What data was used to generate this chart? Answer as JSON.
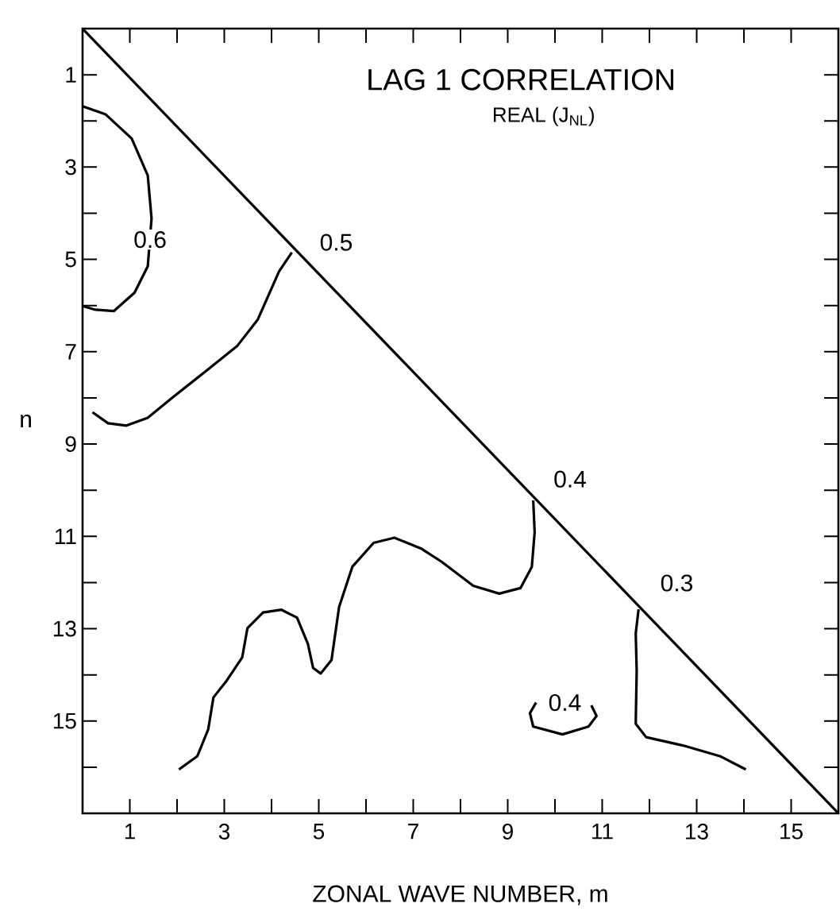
{
  "chart_data": {
    "type": "line",
    "title": "LAG 1 CORRELATION",
    "subtitle": "REAL (J$_{NL}$)",
    "xlabel": "ZONAL WAVE NUMBER, m",
    "ylabel": "n",
    "xlim": [
      0,
      16
    ],
    "ylim": [
      17,
      0
    ],
    "xticks": [
      {
        "value": 1,
        "label": "1"
      },
      {
        "value": 2,
        "label": null
      },
      {
        "value": 3,
        "label": "3"
      },
      {
        "value": 4,
        "label": null
      },
      {
        "value": 5,
        "label": "5"
      },
      {
        "value": 6,
        "label": null
      },
      {
        "value": 7,
        "label": "7"
      },
      {
        "value": 8,
        "label": null
      },
      {
        "value": 9,
        "label": "9"
      },
      {
        "value": 10,
        "label": null
      },
      {
        "value": 11,
        "label": "11"
      },
      {
        "value": 12,
        "label": null
      },
      {
        "value": 13,
        "label": "13"
      },
      {
        "value": 14,
        "label": null
      },
      {
        "value": 15,
        "label": "15"
      }
    ],
    "yticks": [
      {
        "value": 1,
        "label": "1"
      },
      {
        "value": 2,
        "label": null
      },
      {
        "value": 3,
        "label": "3"
      },
      {
        "value": 4,
        "label": null
      },
      {
        "value": 5,
        "label": "5"
      },
      {
        "value": 6,
        "label": null
      },
      {
        "value": 7,
        "label": "7"
      },
      {
        "value": 8,
        "label": null
      },
      {
        "value": 9,
        "label": "9"
      },
      {
        "value": 10,
        "label": null
      },
      {
        "value": 11,
        "label": "11"
      },
      {
        "value": 12,
        "label": null
      },
      {
        "value": 13,
        "label": "13"
      },
      {
        "value": 14,
        "label": null
      },
      {
        "value": 15,
        "label": "15"
      },
      {
        "value": 16,
        "label": null
      }
    ],
    "series": [
      {
        "color": "#000000",
        "x": [
          0,
          16
        ],
        "values": [
          0,
          17
        ]
      },
      {
        "color": "#000000",
        "x": [
          0,
          0.49,
          1.04,
          1.38,
          1.46,
          1.38,
          1.1,
          0.66,
          0.27,
          0
        ],
        "values": [
          1.68,
          1.86,
          2.38,
          3.18,
          4.11,
          5.15,
          5.72,
          6.12,
          6.09,
          6.01
        ]
      },
      {
        "color": "#000000",
        "x": [
          0.21,
          0.54,
          0.93,
          1.38,
          1.93,
          2.71,
          3.27,
          3.71,
          4.16,
          4.43
        ],
        "values": [
          8.31,
          8.55,
          8.6,
          8.43,
          7.97,
          7.34,
          6.88,
          6.3,
          5.26,
          4.85
        ]
      },
      {
        "color": "#000000",
        "x": [
          2.04,
          2.43,
          2.66,
          2.77,
          3.04,
          3.38,
          3.49,
          3.82,
          4.21,
          4.54,
          4.77,
          4.88,
          5.04,
          5.27,
          5.43,
          5.71,
          6.16,
          6.6,
          7.16,
          7.6,
          8.27,
          8.82,
          9.27,
          9.51,
          9.57,
          9.54
        ],
        "values": [
          16.05,
          15.76,
          15.18,
          14.49,
          14.14,
          13.62,
          12.99,
          12.65,
          12.59,
          12.76,
          13.33,
          13.85,
          13.97,
          13.68,
          12.53,
          11.66,
          11.14,
          11.03,
          11.26,
          11.55,
          12.07,
          12.24,
          12.12,
          11.66,
          10.91,
          10.22
        ]
      },
      {
        "color": "#000000",
        "x": [
          11.77,
          11.71,
          11.73,
          11.71,
          11.93,
          12.71,
          13.49,
          14.04
        ],
        "values": [
          12.58,
          13.1,
          13.91,
          15.06,
          15.35,
          15.53,
          15.76,
          16.05
        ]
      },
      {
        "color": "#000000",
        "x": [
          9.6,
          9.47,
          9.54,
          10.16,
          10.71,
          10.88,
          10.77
        ],
        "values": [
          14.6,
          14.83,
          15.12,
          15.29,
          15.12,
          14.89,
          14.66
        ]
      }
    ],
    "annotations": [
      {
        "text": "0.6",
        "x": 1.43,
        "y": 4.57
      },
      {
        "text": "0.5",
        "x": 5.37,
        "y": 4.63
      },
      {
        "text": "0.4",
        "x": 10.32,
        "y": 9.76
      },
      {
        "text": "0.3",
        "x": 12.58,
        "y": 12.01
      },
      {
        "text": "0.4",
        "x": 10.21,
        "y": 14.6
      }
    ]
  }
}
